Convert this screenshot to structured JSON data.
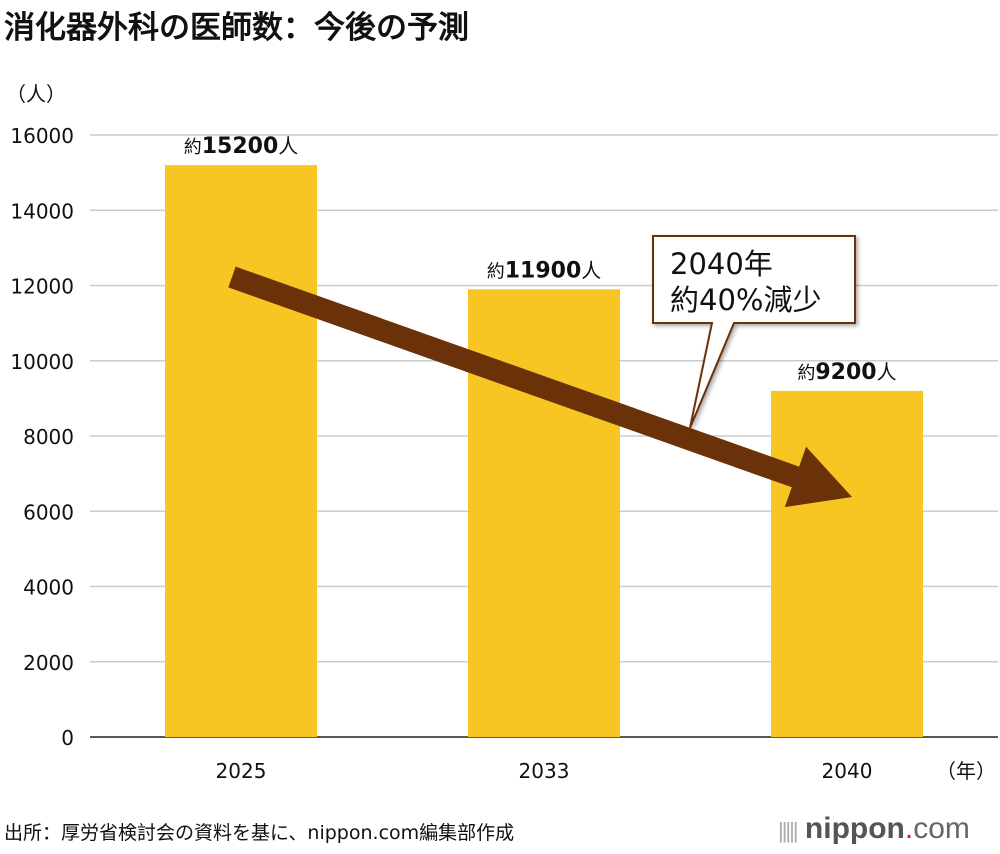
{
  "chart_data": {
    "type": "bar",
    "title": "消化器外科の医師数：今後の予測",
    "ylabel": "（人）",
    "xlabel": "（年）",
    "categories": [
      "2025",
      "2033",
      "2040"
    ],
    "values": [
      15200,
      11900,
      9200
    ],
    "data_labels": [
      {
        "prefix": "約",
        "value": "15200",
        "suffix": "人"
      },
      {
        "prefix": "約",
        "value": "11900",
        "suffix": "人"
      },
      {
        "prefix": "約",
        "value": "9200",
        "suffix": "人"
      }
    ],
    "ylim": [
      0,
      16000
    ],
    "yticks": [
      "0",
      "2000",
      "4000",
      "6000",
      "8000",
      "10000",
      "12000",
      "14000",
      "16000"
    ],
    "grid": true,
    "bar_color": "#f7c623",
    "arrow_color": "#6b3209",
    "annotation": {
      "line1": "2040年",
      "line2": "約40%減少"
    }
  },
  "source": "出所：厚労省検討会の資料を基に、nippon.com編集部作成",
  "logo": {
    "name": "nippon",
    "dot": ".",
    "tld": "com"
  }
}
